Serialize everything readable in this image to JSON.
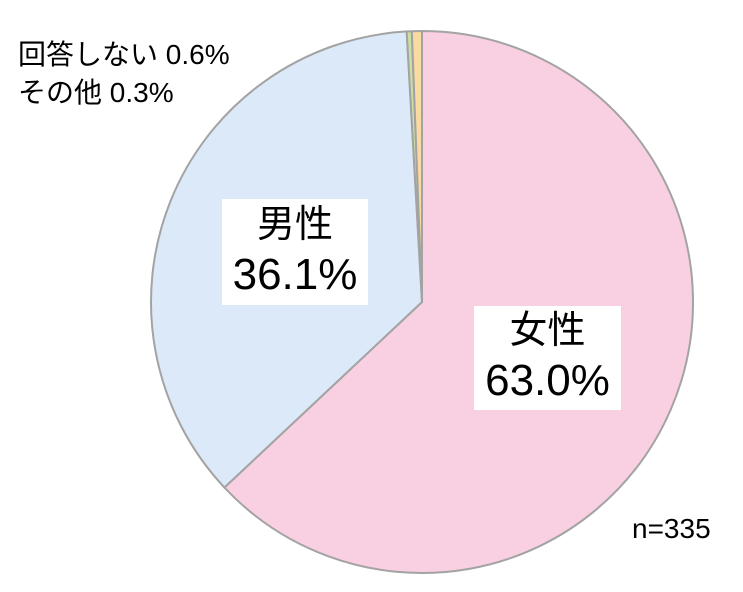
{
  "chart_data": {
    "type": "pie",
    "unit": "%",
    "sample_size": 335,
    "start_angle_deg": 0,
    "direction": "clockwise",
    "border_color": "#a3a3a3",
    "background_color": "#ffffff",
    "slices": [
      {
        "id": "female",
        "label": "女性",
        "value": 63.0,
        "color": "#f9d0e1"
      },
      {
        "id": "male",
        "label": "男性",
        "value": 36.1,
        "color": "#dce9f8"
      },
      {
        "id": "other",
        "label": "その他",
        "value": 0.3,
        "color": "#c9dfa4"
      },
      {
        "id": "no-answer",
        "label": "回答しない",
        "value": 0.6,
        "color": "#fbd9a3"
      }
    ]
  },
  "labels": {
    "no_answer_line": "回答しない 0.6%",
    "other_line": "その他 0.3%",
    "male": {
      "name": "男性",
      "pct": "36.1%"
    },
    "female": {
      "name": "女性",
      "pct": "63.0%"
    },
    "sample_size": "n=335"
  }
}
